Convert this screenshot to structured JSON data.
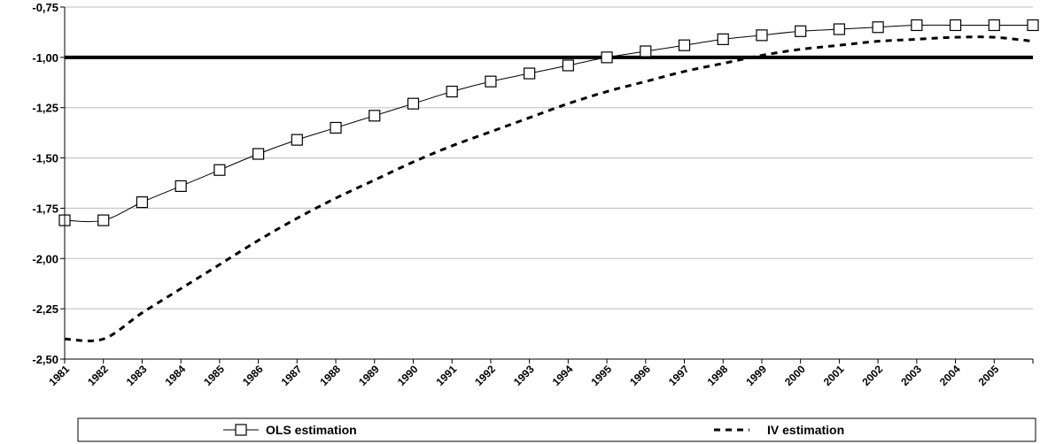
{
  "chart_data": {
    "type": "line",
    "title": "",
    "xlabel": "",
    "ylabel": "",
    "ylim": [
      -2.5,
      -0.75
    ],
    "y_ticks": [
      "-0,75",
      "-1,00",
      "-1,25",
      "-1,50",
      "-1,75",
      "-2,00",
      "-2,25",
      "-2,50"
    ],
    "y_tick_values": [
      -0.75,
      -1.0,
      -1.25,
      -1.5,
      -1.75,
      -2.0,
      -2.25,
      -2.5
    ],
    "x_ticks": [
      "1981",
      "1982",
      "1983",
      "1984",
      "1985",
      "1986",
      "1987",
      "1988",
      "1989",
      "1990",
      "1991",
      "1992",
      "1993",
      "1994",
      "1995",
      "1996",
      "1997",
      "1998",
      "1999",
      "2000",
      "2001",
      "2002",
      "2003",
      "2004",
      "2005"
    ],
    "grid": true,
    "legend_position": "bottom",
    "reference_line": {
      "y": -1.0,
      "color": "#000000"
    },
    "series": [
      {
        "name": "OLS estimation",
        "style": "solid-square-markers",
        "color": "#000000",
        "values": [
          -1.81,
          -1.72,
          -1.64,
          -1.56,
          -1.48,
          -1.41,
          -1.35,
          -1.29,
          -1.23,
          -1.17,
          -1.12,
          -1.08,
          -1.04,
          -1.0,
          -0.97,
          -0.94,
          -0.91,
          -0.89,
          -0.87,
          -0.86,
          -0.85,
          -0.84,
          -0.84,
          -0.84,
          -0.84
        ]
      },
      {
        "name": "IV estimation",
        "style": "dashed",
        "color": "#000000",
        "values": [
          -2.4,
          -2.27,
          -2.15,
          -2.03,
          -1.91,
          -1.8,
          -1.7,
          -1.61,
          -1.52,
          -1.44,
          -1.37,
          -1.3,
          -1.23,
          -1.17,
          -1.12,
          -1.07,
          -1.03,
          -0.99,
          -0.96,
          -0.94,
          -0.92,
          -0.91,
          -0.9,
          -0.9,
          -0.92
        ]
      }
    ]
  }
}
